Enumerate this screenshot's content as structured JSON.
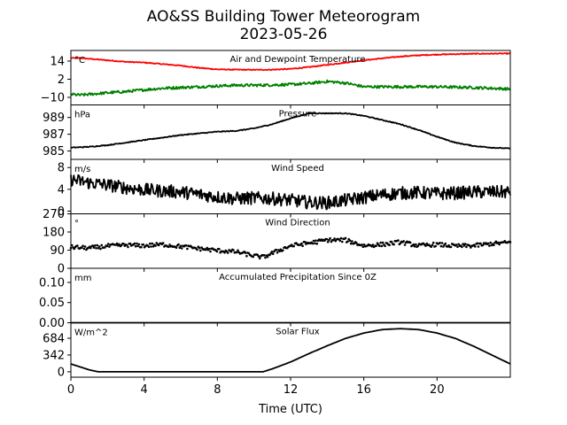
{
  "figure": {
    "title_line1": "AO&SS Building Tower Meteorogram",
    "title_line2": "2023-05-26",
    "xlabel": "Time (UTC)",
    "xlim": [
      0,
      24
    ],
    "x_ticks": [
      0,
      4,
      8,
      12,
      16,
      20
    ],
    "x_tick_labels": [
      "0",
      "4",
      "8",
      "12",
      "16",
      "20"
    ]
  },
  "chart_data": [
    {
      "type": "line",
      "title": "Air and Dewpoint Temperature",
      "unit_label": "°C",
      "ylim": [
        -15,
        21
      ],
      "y_ticks": [
        14,
        2,
        -10
      ],
      "y_tick_labels": [
        "14",
        "2",
        "−10"
      ],
      "series": [
        {
          "color": "#ff0000",
          "x": [
            0,
            0.5,
            1,
            2,
            3,
            4,
            5,
            6,
            7,
            8,
            9,
            10,
            11,
            12,
            13,
            14,
            15,
            16,
            17,
            18,
            19,
            20,
            21,
            22,
            23,
            24
          ],
          "values": [
            16,
            16,
            15.5,
            14.5,
            13.5,
            13,
            12,
            11,
            9.5,
            8.5,
            8.3,
            8.2,
            8.3,
            8.8,
            10,
            11.5,
            13,
            14.5,
            15.8,
            17,
            17.8,
            18.3,
            18.6,
            18.8,
            18.9,
            19
          ],
          "noise": 0.3
        },
        {
          "color": "#008000",
          "x": [
            0,
            0.5,
            1,
            2,
            3,
            4,
            5,
            6,
            7,
            8,
            9,
            10,
            11,
            12,
            13,
            14,
            15,
            16,
            17,
            18,
            19,
            20,
            21,
            22,
            23,
            24
          ],
          "values": [
            -8,
            -8.5,
            -8,
            -7,
            -6.2,
            -5,
            -4,
            -3.5,
            -3,
            -2.5,
            -2,
            -2,
            -1.8,
            -1.5,
            -0.8,
            0.5,
            -0.5,
            -3,
            -3,
            -3,
            -3,
            -3,
            -3.3,
            -3.5,
            -4,
            -4.5
          ],
          "noise": 0.9
        }
      ]
    },
    {
      "type": "line",
      "title": "Pressure",
      "unit_label": "hPa",
      "ylim": [
        984.0,
        990.5
      ],
      "y_ticks": [
        989,
        987,
        985
      ],
      "y_tick_labels": [
        "989",
        "987",
        "985"
      ],
      "series": [
        {
          "color": "#000000",
          "x": [
            0,
            1,
            2,
            3,
            4,
            5,
            6,
            7,
            8,
            9,
            10,
            11,
            12,
            13,
            14,
            15,
            16,
            17,
            18,
            19,
            20,
            21,
            22,
            23,
            24
          ],
          "values": [
            985.4,
            985.5,
            985.7,
            986,
            986.3,
            986.6,
            986.9,
            987.1,
            987.3,
            987.4,
            987.7,
            988.2,
            988.9,
            989.5,
            989.5,
            989.5,
            989.2,
            988.7,
            988.2,
            987.5,
            986.7,
            986.0,
            985.6,
            985.4,
            985.3
          ],
          "noise": 0.05
        }
      ]
    },
    {
      "type": "line",
      "title": "Wind Speed",
      "unit_label": "m/s",
      "ylim": [
        -0.5,
        9.5
      ],
      "y_ticks": [
        8,
        4,
        0
      ],
      "y_tick_labels": [
        "8",
        "4",
        "0"
      ],
      "series": [
        {
          "color": "#000000",
          "x": [
            0,
            1,
            2,
            3,
            4,
            5,
            6,
            7,
            8,
            9,
            10,
            11,
            12,
            13,
            14,
            15,
            16,
            17,
            18,
            19,
            20,
            21,
            22,
            23,
            24
          ],
          "values": [
            5.8,
            5.2,
            4.8,
            4.3,
            3.9,
            3.7,
            3.5,
            3.1,
            2.6,
            2.3,
            2.4,
            2.3,
            2.0,
            1.6,
            1.5,
            2.0,
            2.5,
            3.0,
            3.3,
            3.4,
            3.2,
            3.3,
            3.5,
            3.5,
            3.5
          ],
          "noise": 1.2
        }
      ]
    },
    {
      "type": "scatter",
      "title": "Wind Direction",
      "unit_label": "°",
      "ylim": [
        0,
        270
      ],
      "y_ticks": [
        270,
        180,
        90,
        0
      ],
      "y_tick_labels": [
        "270",
        "180",
        "90",
        "0"
      ],
      "series": [
        {
          "color": "#000000",
          "x": [
            0,
            1,
            2,
            3,
            4,
            5,
            6,
            7,
            8,
            9,
            10,
            10.5,
            11,
            12,
            13,
            14,
            15,
            16,
            17,
            18,
            19,
            20,
            21,
            22,
            23,
            24
          ],
          "values": [
            105,
            100,
            110,
            115,
            112,
            118,
            108,
            98,
            88,
            82,
            62,
            55,
            75,
            112,
            125,
            140,
            140,
            112,
            118,
            130,
            112,
            118,
            110,
            112,
            122,
            128
          ],
          "noise": 10
        }
      ]
    },
    {
      "type": "line",
      "title": "Accumulated Precipitation Since 0Z",
      "unit_label": "mm",
      "ylim": [
        0,
        0.135
      ],
      "y_ticks": [
        0.1,
        0.05,
        0.0
      ],
      "y_tick_labels": [
        "0.10",
        "0.05",
        "0.00"
      ],
      "series": [
        {
          "color": "#000000",
          "x": [
            0,
            24
          ],
          "values": [
            0,
            0
          ],
          "noise": 0
        }
      ]
    },
    {
      "type": "line",
      "title": "Solar Flux",
      "unit_label": "W/m^2",
      "ylim": [
        -110,
        1000
      ],
      "y_ticks": [
        684,
        342,
        0
      ],
      "y_tick_labels": [
        "684",
        "342",
        "0"
      ],
      "series": [
        {
          "color": "#000000",
          "x": [
            0,
            0.5,
            1,
            1.5,
            2,
            4,
            6,
            8,
            10,
            10.5,
            11,
            12,
            13,
            14,
            15,
            16,
            17,
            18,
            19,
            20,
            21,
            22,
            23,
            24
          ],
          "values": [
            160,
            100,
            40,
            0,
            0,
            0,
            0,
            0,
            0,
            0,
            60,
            200,
            370,
            530,
            680,
            790,
            860,
            880,
            860,
            790,
            680,
            520,
            340,
            160
          ],
          "noise": 0
        }
      ]
    }
  ]
}
